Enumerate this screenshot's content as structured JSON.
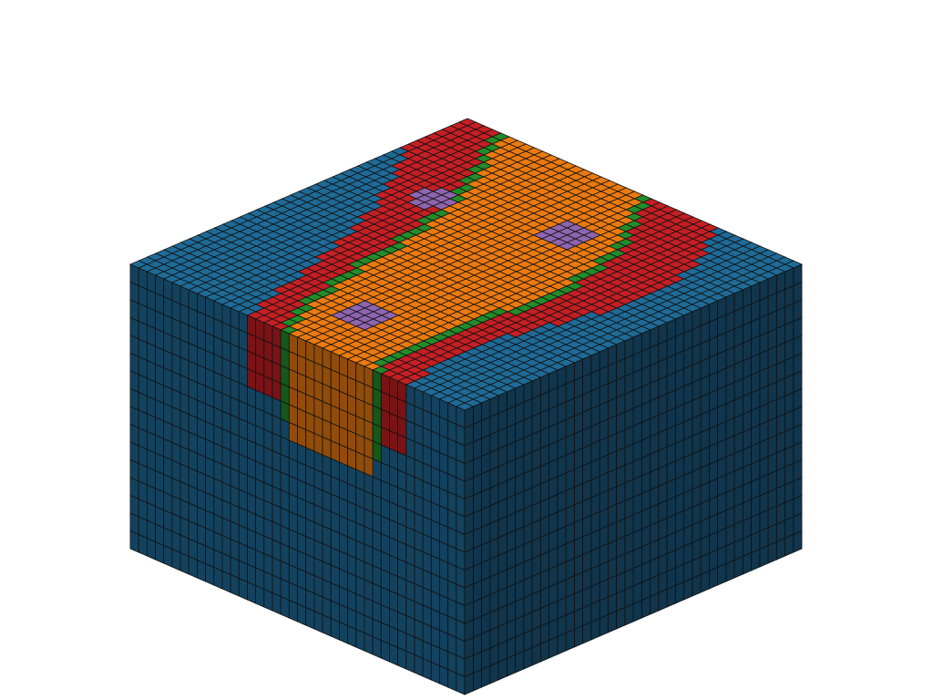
{
  "scene": {
    "description_type": "3d-voxel-block-render",
    "background_color": "#ffffff",
    "grid_line_color": "#111111",
    "facies_colors": {
      "background_block": "#1f6a97",
      "channel_margin": "#c41f24",
      "channel_fill": "#ea7a10",
      "channel_boundary": "#238c2a",
      "lens": "#8f65b0"
    },
    "shading": {
      "top": 1.0,
      "left_side": 0.62,
      "right_side": 0.5
    },
    "grid": {
      "cols_x": 40,
      "rows_y": 40,
      "layers_z": 16
    }
  }
}
